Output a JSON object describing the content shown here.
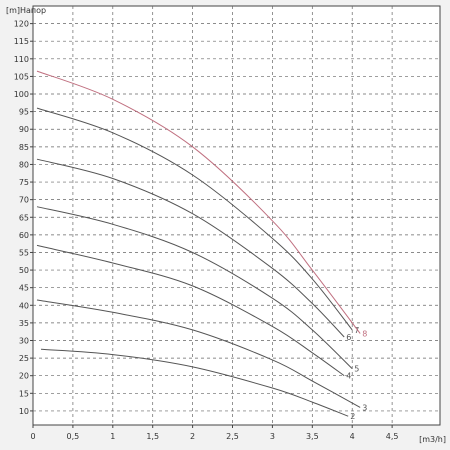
{
  "chart_data": {
    "type": "line",
    "title": "Напор",
    "ylabel": "[m]",
    "xlabel": "[m3/h]",
    "xlim": [
      0,
      5.1
    ],
    "ylim": [
      6,
      125
    ],
    "xticks": [
      0,
      0.5,
      1,
      1.5,
      2,
      2.5,
      3,
      3.5,
      4,
      4.5
    ],
    "xtick_labels": [
      "0",
      "0,5",
      "1",
      "1,5",
      "2",
      "2,5",
      "3",
      "3,5",
      "4",
      "4,5"
    ],
    "yticks": [
      10,
      15,
      20,
      25,
      30,
      35,
      40,
      45,
      50,
      55,
      60,
      65,
      70,
      75,
      80,
      85,
      90,
      95,
      100,
      105,
      110,
      115,
      120
    ],
    "grid": true,
    "series": [
      {
        "name": "2",
        "color": "#555555",
        "x": [
          0.1,
          1,
          2,
          3,
          3.5,
          3.95
        ],
        "y": [
          27.5,
          26,
          22.5,
          16.5,
          12.5,
          8.5
        ]
      },
      {
        "name": "3",
        "color": "#555555",
        "x": [
          0.05,
          1,
          2,
          3,
          3.5,
          4.1
        ],
        "y": [
          41.5,
          38,
          33,
          24.5,
          18.5,
          11
        ]
      },
      {
        "name": "4",
        "color": "#555555",
        "x": [
          0.05,
          1,
          2,
          3,
          3.5,
          3.9
        ],
        "y": [
          57,
          52,
          45.5,
          34,
          26.5,
          20
        ]
      },
      {
        "name": "5",
        "color": "#555555",
        "x": [
          0.05,
          1,
          2,
          3,
          3.5,
          4.0
        ],
        "y": [
          68,
          63,
          55,
          42,
          33,
          22
        ]
      },
      {
        "name": "6",
        "color": "#555555",
        "x": [
          0.05,
          1,
          2,
          3,
          3.5,
          3.9
        ],
        "y": [
          81.5,
          76,
          66,
          50.5,
          40.5,
          31
        ]
      },
      {
        "name": "7",
        "color": "#555555",
        "x": [
          0.05,
          1,
          2,
          3,
          3.5,
          4.0
        ],
        "y": [
          96,
          89,
          77,
          59,
          47.5,
          33
        ]
      },
      {
        "name": "8",
        "color": "#c07080",
        "x": [
          0.05,
          1,
          2,
          3,
          3.5,
          4.1
        ],
        "y": [
          106.5,
          98.5,
          85,
          64,
          50,
          32
        ]
      }
    ]
  }
}
